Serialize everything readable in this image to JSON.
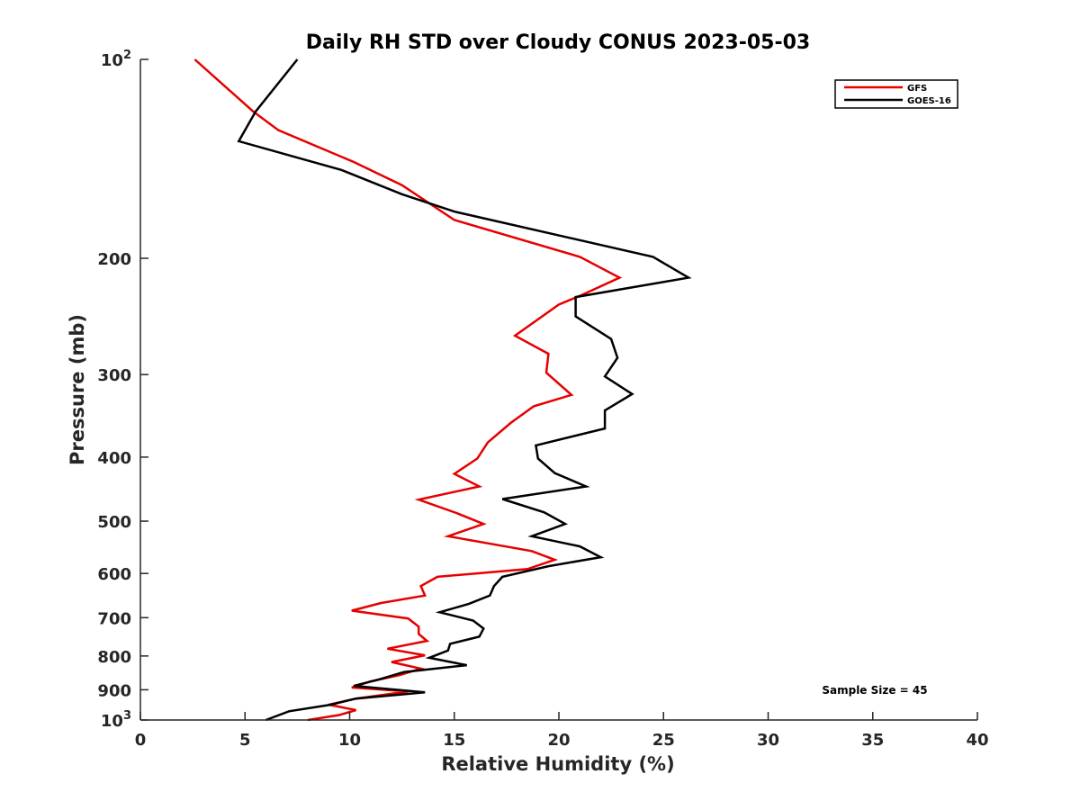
{
  "chart_data": {
    "type": "line",
    "title": "Daily RH STD over Cloudy CONUS 2023-05-03",
    "xlabel": "Relative Humidity (%)",
    "ylabel": "Pressure (mb)",
    "xlim": [
      0,
      40
    ],
    "ylim": [
      100,
      1000
    ],
    "y_scale": "log",
    "y_reversed": true,
    "x_ticks": [
      "0",
      "5",
      "10",
      "15",
      "20",
      "25",
      "30",
      "35",
      "40"
    ],
    "y_ticks": [
      {
        "value": 100,
        "base": "10",
        "exp": "2"
      },
      {
        "value": 200,
        "label": "200"
      },
      {
        "value": 300,
        "label": "300"
      },
      {
        "value": 400,
        "label": "400"
      },
      {
        "value": 500,
        "label": "500"
      },
      {
        "value": 600,
        "label": "600"
      },
      {
        "value": 700,
        "label": "700"
      },
      {
        "value": 800,
        "label": "800"
      },
      {
        "value": 900,
        "label": "900"
      },
      {
        "value": 1000,
        "base": "10",
        "exp": "3"
      }
    ],
    "grid": false,
    "legend_position": "top-right",
    "annotation": "Sample Size = 45",
    "series": [
      {
        "name": "GFS",
        "color": "#e60000",
        "points": [
          [
            2.6,
            100
          ],
          [
            5.4,
            120
          ],
          [
            6.6,
            128
          ],
          [
            10.2,
            143
          ],
          [
            12.5,
            155
          ],
          [
            15.0,
            175
          ],
          [
            21.0,
            199
          ],
          [
            22.9,
            214
          ],
          [
            21.0,
            228
          ],
          [
            20.0,
            235
          ],
          [
            17.9,
            262
          ],
          [
            19.5,
            279
          ],
          [
            19.4,
            298
          ],
          [
            20.6,
            322
          ],
          [
            18.8,
            335
          ],
          [
            17.7,
            355
          ],
          [
            16.6,
            380
          ],
          [
            16.1,
            402
          ],
          [
            15.0,
            424
          ],
          [
            16.2,
            443
          ],
          [
            13.3,
            464
          ],
          [
            15.1,
            486
          ],
          [
            16.4,
            505
          ],
          [
            14.7,
            527
          ],
          [
            18.7,
            555
          ],
          [
            19.8,
            572
          ],
          [
            18.5,
            591
          ],
          [
            14.2,
            607
          ],
          [
            13.4,
            627
          ],
          [
            13.6,
            648
          ],
          [
            11.5,
            665
          ],
          [
            10.1,
            683
          ],
          [
            12.8,
            702
          ],
          [
            13.3,
            722
          ],
          [
            13.3,
            741
          ],
          [
            13.7,
            759
          ],
          [
            11.8,
            780
          ],
          [
            13.6,
            798
          ],
          [
            12.0,
            817
          ],
          [
            13.4,
            836
          ],
          [
            12.4,
            855
          ],
          [
            11.0,
            874
          ],
          [
            10.1,
            893
          ],
          [
            12.8,
            905
          ],
          [
            10.3,
            928
          ],
          [
            9.0,
            948
          ],
          [
            10.3,
            966
          ],
          [
            9.5,
            983
          ],
          [
            8.0,
            1000
          ]
        ]
      },
      {
        "name": "GOES-16",
        "color": "#000000",
        "points": [
          [
            7.5,
            100
          ],
          [
            5.5,
            120
          ],
          [
            4.7,
            133
          ],
          [
            9.6,
            147
          ],
          [
            12.5,
            160
          ],
          [
            15.0,
            170
          ],
          [
            24.5,
            199
          ],
          [
            26.2,
            214
          ],
          [
            20.8,
            229
          ],
          [
            20.8,
            245
          ],
          [
            22.5,
            265
          ],
          [
            22.8,
            283
          ],
          [
            22.2,
            302
          ],
          [
            23.5,
            321
          ],
          [
            22.2,
            340
          ],
          [
            22.2,
            362
          ],
          [
            18.9,
            384
          ],
          [
            19.0,
            402
          ],
          [
            19.8,
            423
          ],
          [
            21.3,
            443
          ],
          [
            17.3,
            463
          ],
          [
            19.3,
            485
          ],
          [
            20.3,
            505
          ],
          [
            18.7,
            527
          ],
          [
            21.0,
            546
          ],
          [
            22.0,
            567
          ],
          [
            19.5,
            585
          ],
          [
            17.3,
            607
          ],
          [
            16.9,
            627
          ],
          [
            16.7,
            648
          ],
          [
            15.7,
            667
          ],
          [
            14.3,
            687
          ],
          [
            15.9,
            707
          ],
          [
            16.4,
            727
          ],
          [
            16.2,
            748
          ],
          [
            14.8,
            767
          ],
          [
            14.7,
            785
          ],
          [
            13.8,
            805
          ],
          [
            15.6,
            826
          ],
          [
            12.6,
            846
          ],
          [
            11.4,
            868
          ],
          [
            10.2,
            888
          ],
          [
            13.6,
            908
          ],
          [
            10.3,
            928
          ],
          [
            9.1,
            948
          ],
          [
            7.1,
            970
          ],
          [
            6.0,
            1000
          ]
        ]
      }
    ]
  }
}
